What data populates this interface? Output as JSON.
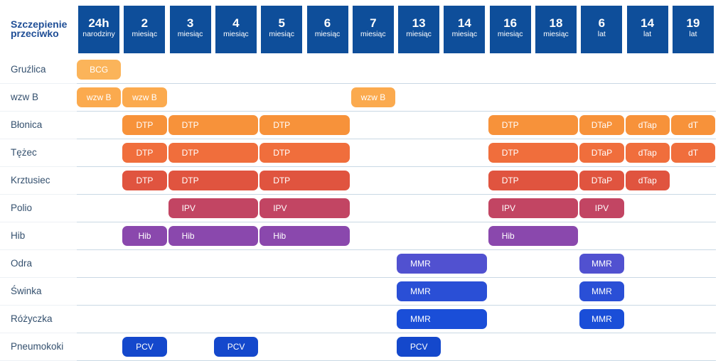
{
  "corner_title": "Szczepienie przeciwko",
  "ages": [
    {
      "value": "24h",
      "unit": "narodziny"
    },
    {
      "value": "2",
      "unit": "miesiąc"
    },
    {
      "value": "3",
      "unit": "miesiąc"
    },
    {
      "value": "4",
      "unit": "miesiąc"
    },
    {
      "value": "5",
      "unit": "miesiąc"
    },
    {
      "value": "6",
      "unit": "miesiąc"
    },
    {
      "value": "7",
      "unit": "miesiąc"
    },
    {
      "value": "13",
      "unit": "miesiąc"
    },
    {
      "value": "14",
      "unit": "miesiąc"
    },
    {
      "value": "16",
      "unit": "miesiąc"
    },
    {
      "value": "18",
      "unit": "miesiąc"
    },
    {
      "value": "6",
      "unit": "lat"
    },
    {
      "value": "14",
      "unit": "lat"
    },
    {
      "value": "19",
      "unit": "lat"
    }
  ],
  "rows": [
    {
      "label": "Gruźlica",
      "color": "#fbb45a",
      "doses": [
        {
          "label": "BCG",
          "start": 0,
          "span": 1
        }
      ]
    },
    {
      "label": "wzw B",
      "color": "#fbaa4e",
      "doses": [
        {
          "label": "wzw B",
          "start": 0,
          "span": 1
        },
        {
          "label": "wzw B",
          "start": 1,
          "span": 1
        },
        {
          "label": "wzw B",
          "start": 6,
          "span": 1
        }
      ]
    },
    {
      "label": "Błonica",
      "color": "#f7923a",
      "doses": [
        {
          "label": "DTP",
          "start": 1,
          "span": 1
        },
        {
          "label": "DTP",
          "start": 2,
          "span": 2
        },
        {
          "label": "DTP",
          "start": 4,
          "span": 2
        },
        {
          "label": "DTP",
          "start": 9,
          "span": 2
        },
        {
          "label": "DTaP",
          "start": 11,
          "span": 1
        },
        {
          "label": "dTap",
          "start": 12,
          "span": 1
        },
        {
          "label": "dT",
          "start": 13,
          "span": 1
        }
      ]
    },
    {
      "label": "Tężec",
      "color": "#f06e3c",
      "doses": [
        {
          "label": "DTP",
          "start": 1,
          "span": 1
        },
        {
          "label": "DTP",
          "start": 2,
          "span": 2
        },
        {
          "label": "DTP",
          "start": 4,
          "span": 2
        },
        {
          "label": "DTP",
          "start": 9,
          "span": 2
        },
        {
          "label": "DTaP",
          "start": 11,
          "span": 1
        },
        {
          "label": "dTap",
          "start": 12,
          "span": 1
        },
        {
          "label": "dT",
          "start": 13,
          "span": 1
        }
      ]
    },
    {
      "label": "Krztusiec",
      "color": "#e0543f",
      "doses": [
        {
          "label": "DTP",
          "start": 1,
          "span": 1
        },
        {
          "label": "DTP",
          "start": 2,
          "span": 2
        },
        {
          "label": "DTP",
          "start": 4,
          "span": 2
        },
        {
          "label": "DTP",
          "start": 9,
          "span": 2
        },
        {
          "label": "DTaP",
          "start": 11,
          "span": 1
        },
        {
          "label": "dTap",
          "start": 12,
          "span": 1
        }
      ]
    },
    {
      "label": "Polio",
      "color": "#c24563",
      "doses": [
        {
          "label": "IPV",
          "start": 2,
          "span": 2
        },
        {
          "label": "IPV",
          "start": 4,
          "span": 2
        },
        {
          "label": "IPV",
          "start": 9,
          "span": 2
        },
        {
          "label": "IPV",
          "start": 11,
          "span": 1
        }
      ]
    },
    {
      "label": "Hib",
      "color": "#8a48ad",
      "doses": [
        {
          "label": "Hib",
          "start": 1,
          "span": 1
        },
        {
          "label": "Hib",
          "start": 2,
          "span": 2
        },
        {
          "label": "Hib",
          "start": 4,
          "span": 2
        },
        {
          "label": "Hib",
          "start": 9,
          "span": 2
        }
      ]
    },
    {
      "label": "Odra",
      "color": "#5151d0",
      "doses": [
        {
          "label": "MMR",
          "start": 7,
          "span": 2
        },
        {
          "label": "MMR",
          "start": 11,
          "span": 1
        }
      ]
    },
    {
      "label": "Świnka",
      "color": "#2a4fd6",
      "doses": [
        {
          "label": "MMR",
          "start": 7,
          "span": 2
        },
        {
          "label": "MMR",
          "start": 11,
          "span": 1
        }
      ]
    },
    {
      "label": "Różyczka",
      "color": "#1a4ed8",
      "doses": [
        {
          "label": "MMR",
          "start": 7,
          "span": 2
        },
        {
          "label": "MMR",
          "start": 11,
          "span": 1
        }
      ]
    },
    {
      "label": "Pneumokoki",
      "color": "#1448cc",
      "doses": [
        {
          "label": "PCV",
          "start": 1,
          "span": 1
        },
        {
          "label": "PCV",
          "start": 3,
          "span": 1
        },
        {
          "label": "PCV",
          "start": 7,
          "span": 1
        }
      ]
    }
  ]
}
